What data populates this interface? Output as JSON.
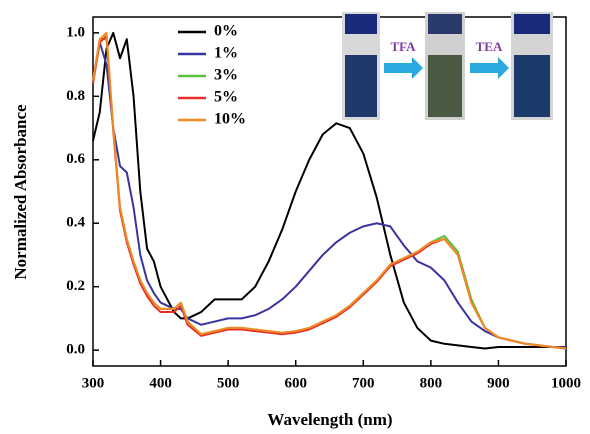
{
  "chart_data": {
    "type": "line",
    "x_label": "Wavelength (nm)",
    "y_label": "Normalized Absorbance",
    "inset_labels": [
      "TFA",
      "TEA"
    ],
    "xlim": [
      300,
      1000
    ],
    "xticks": [
      300,
      400,
      500,
      600,
      700,
      800,
      900,
      1000
    ],
    "ylim": [
      -0.05,
      1.05
    ],
    "yticks": [
      {
        "value": 0,
        "label": "0.0"
      },
      {
        "value": 0.2,
        "label": "0.2"
      },
      {
        "value": 0.4,
        "label": "0.4"
      },
      {
        "value": 0.6,
        "label": "0.6"
      },
      {
        "value": 0.8,
        "label": "0.8"
      },
      {
        "value": 1,
        "label": "1.0"
      }
    ],
    "x": [
      300,
      310,
      320,
      330,
      340,
      350,
      360,
      370,
      380,
      390,
      400,
      420,
      430,
      440,
      460,
      480,
      500,
      520,
      540,
      560,
      580,
      600,
      620,
      640,
      660,
      680,
      700,
      720,
      740,
      760,
      780,
      800,
      820,
      840,
      860,
      880,
      900,
      920,
      940,
      960,
      980,
      1000
    ],
    "series": [
      {
        "name": "0%",
        "color": "#000000",
        "values": [
          0.66,
          0.75,
          0.95,
          1.0,
          0.92,
          0.98,
          0.8,
          0.5,
          0.32,
          0.28,
          0.2,
          0.12,
          0.1,
          0.1,
          0.12,
          0.16,
          0.16,
          0.16,
          0.2,
          0.28,
          0.38,
          0.5,
          0.6,
          0.68,
          0.715,
          0.7,
          0.62,
          0.48,
          0.3,
          0.15,
          0.07,
          0.03,
          0.02,
          0.015,
          0.01,
          0.005,
          0.01,
          0.01,
          0.01,
          0.01,
          0.01,
          0.01
        ]
      },
      {
        "name": "1%",
        "color": "#3a34a0",
        "values": [
          0.85,
          0.97,
          0.9,
          0.7,
          0.58,
          0.56,
          0.45,
          0.3,
          0.22,
          0.18,
          0.15,
          0.13,
          0.13,
          0.1,
          0.08,
          0.09,
          0.1,
          0.1,
          0.11,
          0.13,
          0.16,
          0.2,
          0.25,
          0.3,
          0.34,
          0.37,
          0.39,
          0.4,
          0.39,
          0.33,
          0.28,
          0.26,
          0.22,
          0.15,
          0.09,
          0.06,
          0.04,
          0.03,
          0.02,
          0.015,
          0.01,
          0.01
        ]
      },
      {
        "name": "3%",
        "color": "#5cbf3a",
        "values": [
          0.85,
          0.98,
          0.98,
          0.7,
          0.45,
          0.35,
          0.28,
          0.22,
          0.18,
          0.15,
          0.13,
          0.13,
          0.15,
          0.09,
          0.05,
          0.06,
          0.07,
          0.07,
          0.065,
          0.06,
          0.055,
          0.06,
          0.07,
          0.09,
          0.11,
          0.14,
          0.18,
          0.22,
          0.27,
          0.29,
          0.31,
          0.34,
          0.36,
          0.31,
          0.16,
          0.07,
          0.04,
          0.03,
          0.02,
          0.015,
          0.01,
          0.005
        ]
      },
      {
        "name": "5%",
        "color": "#e8302a",
        "values": [
          0.84,
          0.97,
          0.99,
          0.69,
          0.44,
          0.34,
          0.27,
          0.21,
          0.17,
          0.14,
          0.12,
          0.12,
          0.14,
          0.08,
          0.045,
          0.055,
          0.065,
          0.065,
          0.06,
          0.055,
          0.05,
          0.055,
          0.065,
          0.085,
          0.105,
          0.135,
          0.175,
          0.215,
          0.265,
          0.285,
          0.305,
          0.335,
          0.35,
          0.3,
          0.15,
          0.07,
          0.04,
          0.03,
          0.02,
          0.015,
          0.01,
          0.005
        ]
      },
      {
        "name": "10%",
        "color": "#f08a24",
        "values": [
          0.85,
          0.98,
          1.0,
          0.7,
          0.45,
          0.35,
          0.28,
          0.22,
          0.18,
          0.15,
          0.13,
          0.13,
          0.15,
          0.09,
          0.05,
          0.06,
          0.07,
          0.07,
          0.065,
          0.06,
          0.055,
          0.06,
          0.07,
          0.09,
          0.11,
          0.14,
          0.18,
          0.22,
          0.27,
          0.29,
          0.31,
          0.34,
          0.35,
          0.3,
          0.15,
          0.07,
          0.04,
          0.03,
          0.02,
          0.015,
          0.01,
          0.005
        ]
      }
    ]
  }
}
